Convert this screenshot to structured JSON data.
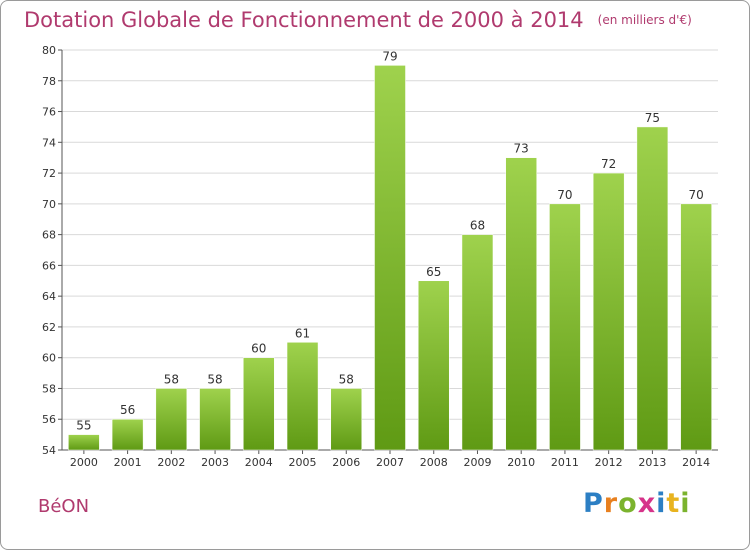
{
  "title": "Dotation Globale de Fonctionnement de 2000 à 2014",
  "subtitle": "(en milliers d'€)",
  "commune": "BéON",
  "logo": {
    "text": "Proxiti",
    "letters": [
      {
        "ch": "P",
        "color": "#2c7fc4"
      },
      {
        "ch": "r",
        "color": "#e8801f"
      },
      {
        "ch": "o",
        "color": "#7bb32e"
      },
      {
        "ch": "x",
        "color": "#d6338a"
      },
      {
        "ch": "i",
        "color": "#2c7fc4"
      },
      {
        "ch": "t",
        "color": "#e8b31f"
      },
      {
        "ch": "i",
        "color": "#7bb32e"
      }
    ]
  },
  "chart_data": {
    "type": "bar",
    "categories": [
      "2000",
      "2001",
      "2002",
      "2003",
      "2004",
      "2005",
      "2006",
      "2007",
      "2008",
      "2009",
      "2010",
      "2011",
      "2012",
      "2013",
      "2014"
    ],
    "values": [
      55,
      56,
      58,
      58,
      60,
      61,
      58,
      79,
      65,
      68,
      73,
      70,
      72,
      75,
      70
    ],
    "ylim": [
      54,
      80
    ],
    "yticks": [
      54,
      56,
      58,
      60,
      62,
      64,
      66,
      68,
      70,
      72,
      74,
      76,
      78,
      80
    ],
    "grid": true,
    "bar_color_top": "#9fd24d",
    "bar_color_bottom": "#5f9a14"
  }
}
